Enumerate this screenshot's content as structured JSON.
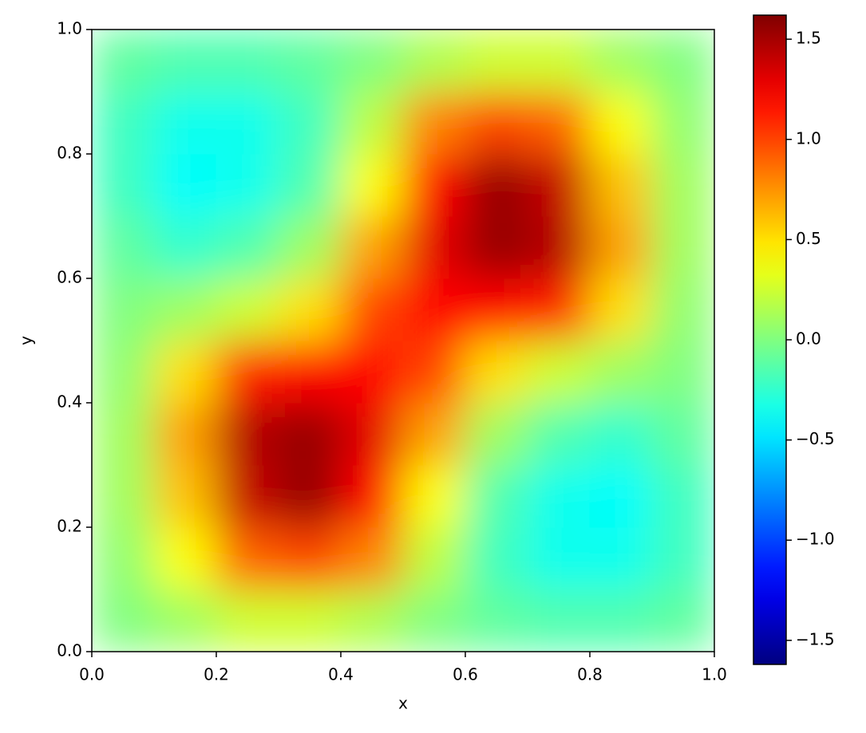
{
  "chart_data": {
    "type": "heatmap",
    "xlabel": "x",
    "ylabel": "y",
    "colormap": "jet",
    "x": [
      0.05,
      0.15,
      0.25,
      0.35,
      0.45,
      0.55,
      0.65,
      0.75,
      0.85,
      0.95
    ],
    "y": [
      0.05,
      0.15,
      0.25,
      0.35,
      0.45,
      0.55,
      0.65,
      0.75,
      0.85,
      0.95
    ],
    "z": [
      [
        0.0,
        0.1,
        0.25,
        0.25,
        0.15,
        0.0,
        -0.1,
        -0.15,
        -0.15,
        -0.1
      ],
      [
        0.05,
        0.4,
        0.9,
        1.0,
        0.8,
        0.2,
        -0.2,
        -0.35,
        -0.35,
        -0.2
      ],
      [
        0.1,
        0.6,
        1.4,
        1.55,
        1.2,
        0.4,
        -0.15,
        -0.35,
        -0.4,
        -0.2
      ],
      [
        0.1,
        0.7,
        1.45,
        1.55,
        1.3,
        0.7,
        0.1,
        -0.15,
        -0.25,
        -0.1
      ],
      [
        0.05,
        0.5,
        1.1,
        1.2,
        1.2,
        1.0,
        0.5,
        0.25,
        0.1,
        0.0
      ],
      [
        0.0,
        0.1,
        0.25,
        0.5,
        1.0,
        1.2,
        1.2,
        1.1,
        0.5,
        0.05
      ],
      [
        -0.1,
        -0.25,
        -0.15,
        0.1,
        0.7,
        1.3,
        1.55,
        1.45,
        0.7,
        0.1
      ],
      [
        -0.2,
        -0.4,
        -0.35,
        -0.15,
        0.4,
        1.2,
        1.55,
        1.4,
        0.6,
        0.1
      ],
      [
        -0.2,
        -0.35,
        -0.35,
        -0.2,
        0.2,
        0.8,
        1.0,
        0.9,
        0.4,
        0.05
      ],
      [
        -0.1,
        -0.15,
        -0.15,
        -0.1,
        0.0,
        0.15,
        0.25,
        0.25,
        0.1,
        0.0
      ]
    ],
    "xlim": [
      0,
      1
    ],
    "ylim": [
      0,
      1
    ],
    "xticks": [
      {
        "value": 0,
        "label": "0.0"
      },
      {
        "value": 0.2,
        "label": "0.2"
      },
      {
        "value": 0.4,
        "label": "0.4"
      },
      {
        "value": 0.6,
        "label": "0.6"
      },
      {
        "value": 0.8,
        "label": "0.8"
      },
      {
        "value": 1,
        "label": "1.0"
      }
    ],
    "yticks": [
      {
        "value": 0,
        "label": "0.0"
      },
      {
        "value": 0.2,
        "label": "0.2"
      },
      {
        "value": 0.4,
        "label": "0.4"
      },
      {
        "value": 0.6,
        "label": "0.6"
      },
      {
        "value": 0.8,
        "label": "0.8"
      },
      {
        "value": 1,
        "label": "1.0"
      }
    ],
    "clim": [
      -1.62,
      1.62
    ],
    "cticks": [
      {
        "value": -1.5,
        "label": "−1.5"
      },
      {
        "value": -1,
        "label": "−1.0"
      },
      {
        "value": -0.5,
        "label": "−0.5"
      },
      {
        "value": 0,
        "label": "0.0"
      },
      {
        "value": 0.5,
        "label": "0.5"
      },
      {
        "value": 1,
        "label": "1.0"
      },
      {
        "value": 1.5,
        "label": "1.5"
      }
    ]
  }
}
